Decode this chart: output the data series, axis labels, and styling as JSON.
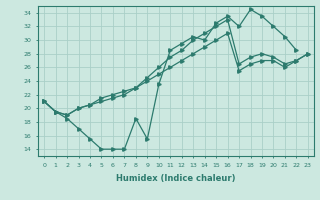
{
  "bg_color": "#cce8e0",
  "line_color": "#2d7b6e",
  "grid_color": "#aacfc8",
  "xlim": [
    -0.5,
    23.5
  ],
  "ylim": [
    13,
    35
  ],
  "yticks": [
    14,
    16,
    18,
    20,
    22,
    24,
    26,
    28,
    30,
    32,
    34
  ],
  "xticks": [
    0,
    1,
    2,
    3,
    4,
    5,
    6,
    7,
    8,
    9,
    10,
    11,
    12,
    13,
    14,
    15,
    16,
    17,
    18,
    19,
    20,
    21,
    22,
    23
  ],
  "xlabel": "Humidex (Indice chaleur)",
  "line_a_x": [
    0,
    1,
    2,
    3,
    4,
    5,
    6,
    7,
    8,
    9,
    10,
    11,
    12,
    13,
    14,
    15,
    16,
    17,
    18,
    19,
    20,
    21,
    22
  ],
  "line_a_y": [
    21,
    19.5,
    18.5,
    17,
    15.5,
    14,
    14,
    14,
    18.5,
    15.5,
    23.5,
    28.5,
    29.5,
    30.5,
    30,
    32.5,
    33.5,
    32,
    34.5,
    33.5,
    32,
    30.5,
    28.5
  ],
  "line_b_x": [
    0,
    1,
    2,
    3,
    4,
    5,
    6,
    7,
    8,
    9,
    10,
    11,
    12,
    13,
    14,
    15,
    16,
    17,
    18,
    19,
    20,
    21,
    22,
    23
  ],
  "line_b_y": [
    21,
    19.5,
    19,
    20,
    20.5,
    21,
    21.5,
    22,
    23,
    24,
    25,
    26,
    27,
    28,
    29,
    30,
    31,
    25.5,
    26.5,
    27,
    27,
    26,
    27,
    28
  ],
  "line_c_x": [
    0,
    1,
    2,
    3,
    4,
    5,
    6,
    7,
    8,
    9,
    10,
    11,
    12,
    13,
    14,
    15,
    16,
    17,
    18,
    19,
    20,
    21,
    22,
    23
  ],
  "line_c_y": [
    21,
    19.5,
    19,
    20,
    20.5,
    21.5,
    22,
    22.5,
    23,
    24.5,
    26,
    27.5,
    28.5,
    30,
    31,
    32,
    33,
    26.5,
    27.5,
    28,
    27.5,
    26.5,
    27,
    28
  ]
}
